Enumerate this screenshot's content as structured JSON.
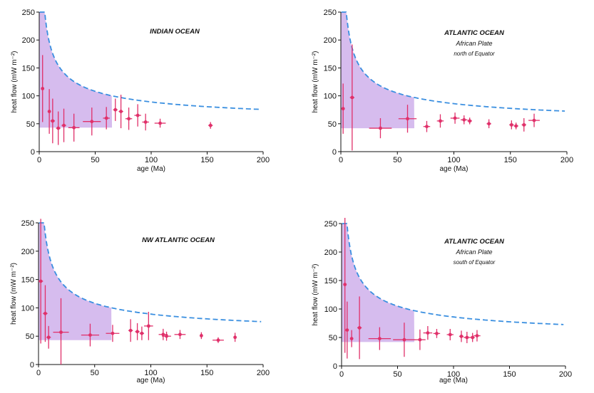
{
  "colors": {
    "envelope": "#c8a6e8",
    "curve": "#3a8fe0",
    "points": "#e0306a",
    "axes": "#111111"
  },
  "chart_data": [
    {
      "type": "scatter",
      "title": "INDIAN OCEAN",
      "subtitle": [],
      "xlabel": "age (Ma)",
      "ylabel": "heat flow (mW m⁻²)",
      "xlim": [
        0,
        200
      ],
      "ylim": [
        0,
        250
      ],
      "xticks": [
        0,
        50,
        100,
        150,
        200
      ],
      "yticks": [
        0,
        50,
        100,
        150,
        200,
        250
      ],
      "curve_C": 460,
      "curve_floor": 43,
      "envelope_floor": 43,
      "points": [
        {
          "x": 3,
          "y": 113,
          "xerr": 1,
          "yerr": 60
        },
        {
          "x": 9,
          "y": 72,
          "xerr": 1,
          "yerr": 40
        },
        {
          "x": 12,
          "y": 55,
          "xerr": 2,
          "yerr": 40
        },
        {
          "x": 17,
          "y": 42,
          "xerr": 2,
          "yerr": 30
        },
        {
          "x": 22,
          "y": 47,
          "xerr": 2,
          "yerr": 30
        },
        {
          "x": 31,
          "y": 43,
          "xerr": 5,
          "yerr": 25
        },
        {
          "x": 47,
          "y": 54,
          "xerr": 8,
          "yerr": 25
        },
        {
          "x": 60,
          "y": 60,
          "xerr": 3,
          "yerr": 20
        },
        {
          "x": 68,
          "y": 75,
          "xerr": 2,
          "yerr": 20
        },
        {
          "x": 73,
          "y": 72,
          "xerr": 2,
          "yerr": 30
        },
        {
          "x": 80,
          "y": 59,
          "xerr": 3,
          "yerr": 20
        },
        {
          "x": 88,
          "y": 65,
          "xerr": 3,
          "yerr": 20
        },
        {
          "x": 95,
          "y": 53,
          "xerr": 3,
          "yerr": 15
        },
        {
          "x": 108,
          "y": 51,
          "xerr": 5,
          "yerr": 8
        },
        {
          "x": 153,
          "y": 47,
          "xerr": 2,
          "yerr": 6
        }
      ]
    },
    {
      "type": "scatter",
      "title": "ATLANTIC OCEAN",
      "subtitle": [
        "African Plate",
        "north of Equator"
      ],
      "xlabel": "age (Ma)",
      "ylabel": "heat flow (mW m⁻²)",
      "xlim": [
        0,
        200
      ],
      "ylim": [
        0,
        250
      ],
      "xticks": [
        0,
        50,
        100,
        150,
        200
      ],
      "yticks": [
        0,
        50,
        100,
        150,
        200,
        250
      ],
      "curve_C": 460,
      "curve_floor": 40,
      "envelope_floor": 42,
      "points": [
        {
          "x": 2,
          "y": 77,
          "xerr": 1,
          "yerr": 45
        },
        {
          "x": 10,
          "y": 97,
          "xerr": 2,
          "yerr": 95
        },
        {
          "x": 35,
          "y": 42,
          "xerr": 10,
          "yerr": 18
        },
        {
          "x": 59,
          "y": 59,
          "xerr": 8,
          "yerr": 25
        },
        {
          "x": 76,
          "y": 45,
          "xerr": 3,
          "yerr": 10
        },
        {
          "x": 88,
          "y": 55,
          "xerr": 3,
          "yerr": 12
        },
        {
          "x": 101,
          "y": 60,
          "xerr": 4,
          "yerr": 10
        },
        {
          "x": 109,
          "y": 57,
          "xerr": 3,
          "yerr": 8
        },
        {
          "x": 114,
          "y": 55,
          "xerr": 2,
          "yerr": 6
        },
        {
          "x": 131,
          "y": 50,
          "xerr": 2,
          "yerr": 8
        },
        {
          "x": 151,
          "y": 48,
          "xerr": 2,
          "yerr": 8
        },
        {
          "x": 155,
          "y": 46,
          "xerr": 2,
          "yerr": 6
        },
        {
          "x": 162,
          "y": 48,
          "xerr": 2,
          "yerr": 12
        },
        {
          "x": 171,
          "y": 56,
          "xerr": 5,
          "yerr": 12
        }
      ]
    },
    {
      "type": "scatter",
      "title": "NW ATLANTIC OCEAN",
      "subtitle": [],
      "xlabel": "age (Ma)",
      "ylabel": "heat flow (mW m⁻²)",
      "xlim": [
        0,
        200
      ],
      "ylim": [
        0,
        250
      ],
      "xticks": [
        0,
        50,
        100,
        150,
        200
      ],
      "yticks": [
        0,
        50,
        100,
        150,
        200,
        250
      ],
      "curve_C": 460,
      "curve_floor": 43,
      "envelope_floor": 43,
      "points": [
        {
          "x": 2,
          "y": 147,
          "xerr": 2,
          "yerr": 110
        },
        {
          "x": 6,
          "y": 90,
          "xerr": 2,
          "yerr": 50
        },
        {
          "x": 9,
          "y": 48,
          "xerr": 2,
          "yerr": 20
        },
        {
          "x": 20,
          "y": 57,
          "xerr": 7,
          "yerr": 60
        },
        {
          "x": 46,
          "y": 52,
          "xerr": 8,
          "yerr": 20
        },
        {
          "x": 66,
          "y": 55,
          "xerr": 6,
          "yerr": 15
        },
        {
          "x": 82,
          "y": 60,
          "xerr": 2,
          "yerr": 20
        },
        {
          "x": 88,
          "y": 58,
          "xerr": 2,
          "yerr": 15
        },
        {
          "x": 92,
          "y": 55,
          "xerr": 2,
          "yerr": 12
        },
        {
          "x": 98,
          "y": 68,
          "xerr": 4,
          "yerr": 25
        },
        {
          "x": 111,
          "y": 53,
          "xerr": 4,
          "yerr": 10
        },
        {
          "x": 114,
          "y": 50,
          "xerr": 4,
          "yerr": 8
        },
        {
          "x": 126,
          "y": 53,
          "xerr": 5,
          "yerr": 8
        },
        {
          "x": 145,
          "y": 51,
          "xerr": 1,
          "yerr": 6
        },
        {
          "x": 160,
          "y": 43,
          "xerr": 5,
          "yerr": 5
        },
        {
          "x": 175,
          "y": 48,
          "xerr": 1,
          "yerr": 8
        }
      ]
    },
    {
      "type": "scatter",
      "title": "ATLANTIC OCEAN",
      "subtitle": [
        "African Plate",
        "south of Equator"
      ],
      "xlabel": "age (Ma)",
      "ylabel": "heat flow (mW m⁻²)",
      "xlim": [
        0,
        200
      ],
      "ylim": [
        0,
        250
      ],
      "xticks": [
        0,
        50,
        100,
        150,
        200
      ],
      "yticks": [
        0,
        50,
        100,
        150,
        200,
        250
      ],
      "curve_C": 460,
      "curve_floor": 40,
      "envelope_floor": 42,
      "points": [
        {
          "x": 3,
          "y": 143,
          "xerr": 1,
          "yerr": 120
        },
        {
          "x": 5,
          "y": 63,
          "xerr": 1,
          "yerr": 50
        },
        {
          "x": 9,
          "y": 48,
          "xerr": 1,
          "yerr": 15
        },
        {
          "x": 16,
          "y": 67,
          "xerr": 2,
          "yerr": 55
        },
        {
          "x": 34,
          "y": 48,
          "xerr": 10,
          "yerr": 20
        },
        {
          "x": 56,
          "y": 46,
          "xerr": 10,
          "yerr": 30
        },
        {
          "x": 70,
          "y": 46,
          "xerr": 5,
          "yerr": 18
        },
        {
          "x": 77,
          "y": 58,
          "xerr": 4,
          "yerr": 12
        },
        {
          "x": 85,
          "y": 57,
          "xerr": 3,
          "yerr": 8
        },
        {
          "x": 97,
          "y": 55,
          "xerr": 3,
          "yerr": 10
        },
        {
          "x": 107,
          "y": 52,
          "xerr": 2,
          "yerr": 10
        },
        {
          "x": 112,
          "y": 50,
          "xerr": 3,
          "yerr": 10
        },
        {
          "x": 117,
          "y": 50,
          "xerr": 2,
          "yerr": 8
        },
        {
          "x": 121,
          "y": 53,
          "xerr": 3,
          "yerr": 10
        }
      ]
    }
  ]
}
